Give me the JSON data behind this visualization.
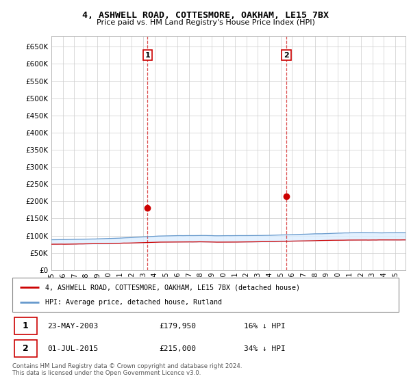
{
  "title": "4, ASHWELL ROAD, COTTESMORE, OAKHAM, LE15 7BX",
  "subtitle": "Price paid vs. HM Land Registry's House Price Index (HPI)",
  "ylabel_ticks": [
    "£0",
    "£50K",
    "£100K",
    "£150K",
    "£200K",
    "£250K",
    "£300K",
    "£350K",
    "£400K",
    "£450K",
    "£500K",
    "£550K",
    "£600K",
    "£650K"
  ],
  "ylim": [
    0,
    680000
  ],
  "xlim_start": 1995.0,
  "xlim_end": 2025.9,
  "sale1_date": 2003.38,
  "sale1_price": 179950,
  "sale1_label": "1",
  "sale2_date": 2015.5,
  "sale2_price": 215000,
  "sale2_label": "2",
  "legend_line1": "4, ASHWELL ROAD, COTTESMORE, OAKHAM, LE15 7BX (detached house)",
  "legend_line2": "HPI: Average price, detached house, Rutland",
  "annotation1_date": "23-MAY-2003",
  "annotation1_price": "£179,950",
  "annotation1_hpi": "16% ↓ HPI",
  "annotation2_date": "01-JUL-2015",
  "annotation2_price": "£215,000",
  "annotation2_hpi": "34% ↓ HPI",
  "footer": "Contains HM Land Registry data © Crown copyright and database right 2024.\nThis data is licensed under the Open Government Licence v3.0.",
  "red_color": "#cc0000",
  "blue_color": "#6699cc",
  "fill_color": "#ddeeff",
  "background_color": "#ffffff",
  "grid_color": "#cccccc"
}
